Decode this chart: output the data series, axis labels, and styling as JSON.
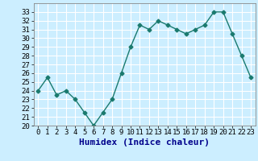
{
  "x": [
    0,
    1,
    2,
    3,
    4,
    5,
    6,
    7,
    8,
    9,
    10,
    11,
    12,
    13,
    14,
    15,
    16,
    17,
    18,
    19,
    20,
    21,
    22,
    23
  ],
  "y": [
    24.0,
    25.5,
    23.5,
    24.0,
    23.0,
    21.5,
    20.0,
    21.5,
    23.0,
    26.0,
    29.0,
    31.5,
    31.0,
    32.0,
    31.5,
    31.0,
    30.5,
    31.0,
    31.5,
    33.0,
    33.0,
    30.5,
    28.0,
    25.5
  ],
  "xlabel": "Humidex (Indice chaleur)",
  "xlim": [
    -0.5,
    23.5
  ],
  "ylim": [
    20,
    34
  ],
  "yticks": [
    20,
    21,
    22,
    23,
    24,
    25,
    26,
    27,
    28,
    29,
    30,
    31,
    32,
    33
  ],
  "xticks": [
    0,
    1,
    2,
    3,
    4,
    5,
    6,
    7,
    8,
    9,
    10,
    11,
    12,
    13,
    14,
    15,
    16,
    17,
    18,
    19,
    20,
    21,
    22,
    23
  ],
  "line_color": "#1a7a6e",
  "marker": "D",
  "marker_size": 2.5,
  "bg_color": "#cceeff",
  "grid_color": "#ffffff",
  "xlabel_fontsize": 8,
  "tick_fontsize": 6.5,
  "xlabel_color": "#00008b",
  "linewidth": 1.0
}
